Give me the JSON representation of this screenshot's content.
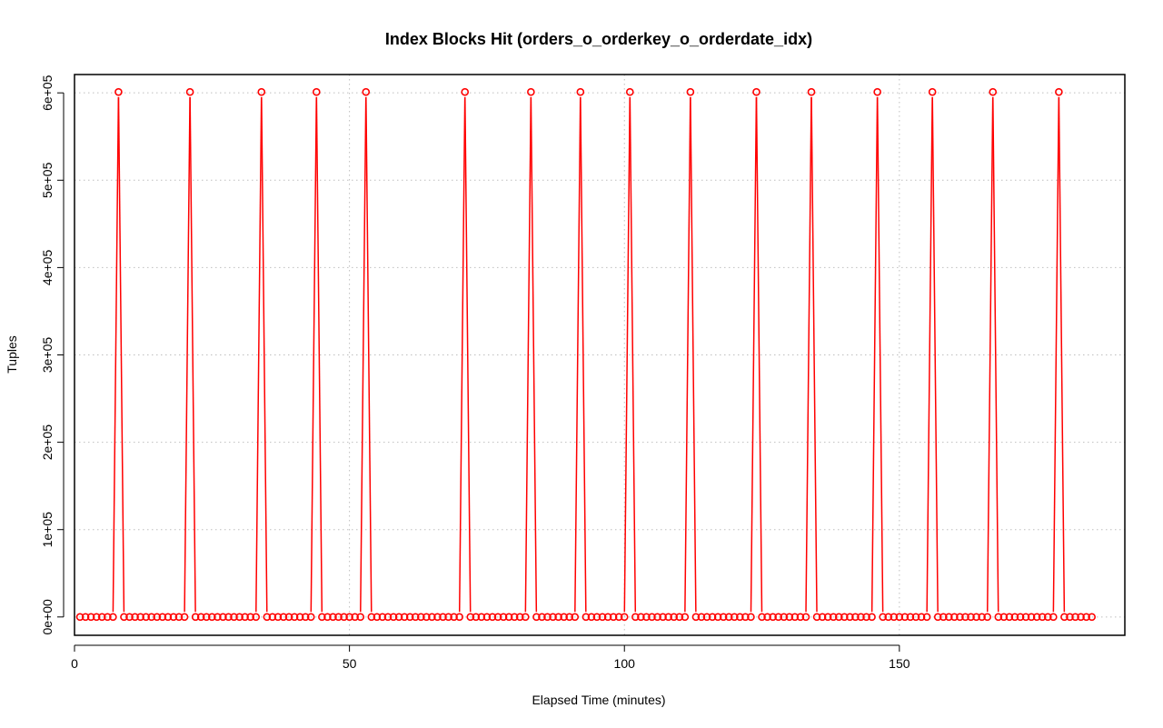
{
  "chart_data": {
    "type": "line",
    "title": "Index Blocks Hit (orders_o_orderkey_o_orderdate_idx)",
    "xlabel": "Elapsed Time (minutes)",
    "ylabel": "Tuples",
    "xlim": [
      0,
      191
    ],
    "ylim": [
      -21000,
      621000
    ],
    "xticks": [
      0,
      50,
      100,
      150
    ],
    "xtick_labels": [
      "0",
      "50",
      "100",
      "150"
    ],
    "yticks": [
      0,
      100000,
      200000,
      300000,
      400000,
      500000,
      600000
    ],
    "ytick_labels": [
      "0e+00",
      "1e+05",
      "2e+05",
      "3e+05",
      "4e+05",
      "5e+05",
      "6e+05"
    ],
    "grid": true,
    "colors": {
      "series": "#ff0000",
      "grid": "#bebebe",
      "axis": "#000000"
    },
    "series": [
      {
        "marker": "open-circle",
        "x_start": 1,
        "x_end": 185,
        "x_step": 1,
        "baseline_value": 0,
        "peak_x": [
          8,
          21,
          34,
          44,
          53,
          71,
          83,
          92,
          101,
          112,
          124,
          134,
          146,
          156,
          167,
          179
        ],
        "peak_value": 601000
      }
    ]
  }
}
